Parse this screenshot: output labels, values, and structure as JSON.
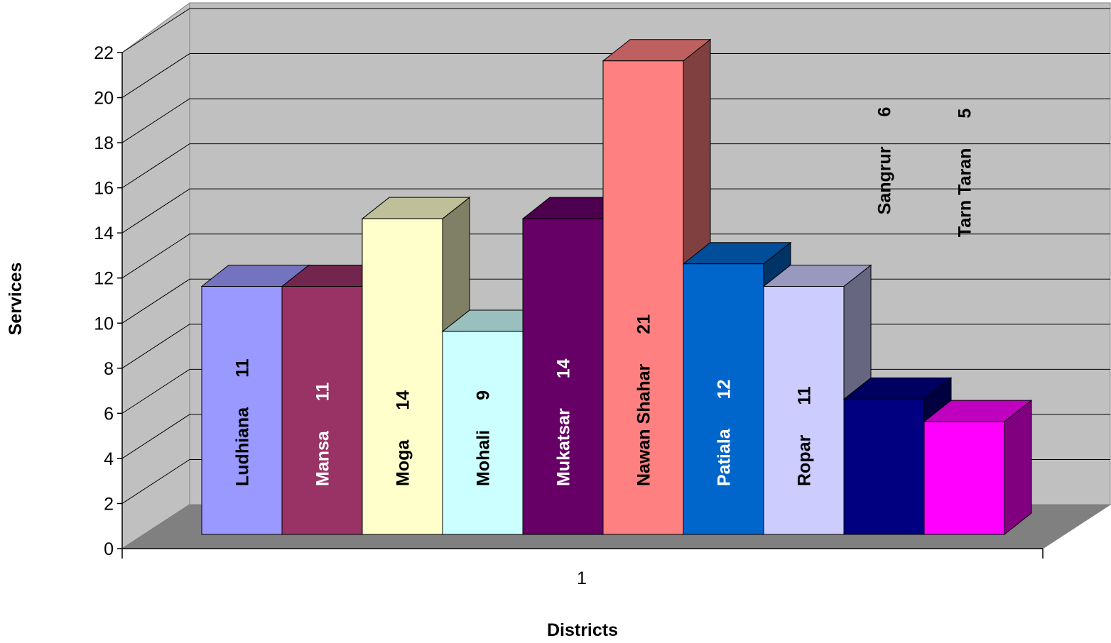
{
  "chart_data": {
    "type": "bar",
    "title": "",
    "xlabel": "Districts",
    "ylabel": "Services",
    "categories": [
      "1"
    ],
    "ylim": [
      0,
      22
    ],
    "yticks": [
      0,
      2,
      4,
      6,
      8,
      10,
      12,
      14,
      16,
      18,
      20,
      22
    ],
    "grid": true,
    "legend": "none",
    "series": [
      {
        "name": "Ludhiana",
        "values": [
          11
        ],
        "color": "#9999FF",
        "label_color": "#000000"
      },
      {
        "name": "Mansa",
        "values": [
          11
        ],
        "color": "#993366",
        "label_color": "#FFFFFF"
      },
      {
        "name": "Moga",
        "values": [
          14
        ],
        "color": "#FFFFCC",
        "label_color": "#000000"
      },
      {
        "name": "Mohali",
        "values": [
          9
        ],
        "color": "#CCFFFF",
        "label_color": "#000000"
      },
      {
        "name": "Mukatsar",
        "values": [
          14
        ],
        "color": "#660066",
        "label_color": "#FFFFFF"
      },
      {
        "name": "Nawan Shahar",
        "values": [
          21
        ],
        "color": "#FF8080",
        "label_color": "#000000"
      },
      {
        "name": "Patiala",
        "values": [
          12
        ],
        "color": "#0066CC",
        "label_color": "#FFFFFF"
      },
      {
        "name": "Ropar",
        "values": [
          11
        ],
        "color": "#CCCCFF",
        "label_color": "#000000"
      },
      {
        "name": "Sangrur",
        "values": [
          6
        ],
        "color": "#000080",
        "label_color": "#000000"
      },
      {
        "name": "Tarn Taran",
        "values": [
          5
        ],
        "color": "#FF00FF",
        "label_color": "#000000"
      }
    ]
  }
}
